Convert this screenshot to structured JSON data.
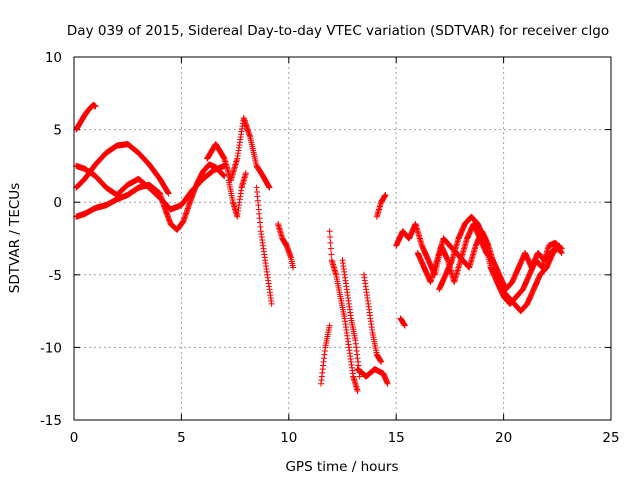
{
  "chart_data": {
    "type": "scatter",
    "title": "Day 039 of 2015, Sidereal Day-to-day VTEC variation (SDTVAR) for receiver clgo",
    "xlabel": "GPS time / hours",
    "ylabel": "SDTVAR / TECUs",
    "xlim": [
      0,
      25
    ],
    "ylim": [
      -15,
      10
    ],
    "xticks": [
      0,
      5,
      10,
      15,
      20,
      25
    ],
    "yticks": [
      -15,
      -10,
      -5,
      0,
      5,
      10
    ],
    "grid": true,
    "marker": "+",
    "series": [
      {
        "name": "clgo",
        "color": "#ff0000",
        "tracks": [
          [
            [
              0.1,
              -1.0
            ],
            [
              0.5,
              -0.8
            ],
            [
              1.0,
              -0.4
            ],
            [
              1.5,
              -0.2
            ],
            [
              2.0,
              0.2
            ],
            [
              2.5,
              0.5
            ],
            [
              3.0,
              1.0
            ],
            [
              3.5,
              1.2
            ],
            [
              4.0,
              0.6
            ],
            [
              4.2,
              -0.3
            ],
            [
              4.5,
              -1.5
            ],
            [
              4.8,
              -1.9
            ],
            [
              5.1,
              -1.3
            ],
            [
              5.4,
              0.0
            ],
            [
              5.7,
              1.2
            ],
            [
              6.0,
              2.1
            ],
            [
              6.3,
              2.6
            ],
            [
              6.6,
              2.4
            ],
            [
              7.0,
              1.8
            ]
          ],
          [
            [
              0.1,
              2.5
            ],
            [
              0.5,
              2.3
            ],
            [
              1.0,
              1.8
            ],
            [
              1.5,
              1.0
            ],
            [
              2.0,
              0.5
            ],
            [
              2.5,
              1.2
            ],
            [
              3.0,
              1.6
            ],
            [
              3.5,
              1.0
            ],
            [
              4.0,
              0.3
            ],
            [
              4.5,
              -0.5
            ],
            [
              5.0,
              -0.2
            ],
            [
              5.5,
              0.8
            ],
            [
              6.0,
              1.6
            ],
            [
              6.5,
              2.2
            ],
            [
              7.0,
              2.5
            ]
          ],
          [
            [
              0.1,
              1.0
            ],
            [
              0.5,
              1.6
            ],
            [
              1.0,
              2.6
            ],
            [
              1.5,
              3.4
            ],
            [
              2.0,
              3.9
            ],
            [
              2.5,
              4.0
            ],
            [
              3.0,
              3.4
            ],
            [
              3.5,
              2.6
            ],
            [
              4.0,
              1.6
            ],
            [
              4.4,
              0.6
            ]
          ],
          [
            [
              0.1,
              5.0
            ],
            [
              0.3,
              5.5
            ],
            [
              0.5,
              6.0
            ],
            [
              0.7,
              6.4
            ],
            [
              0.9,
              6.7
            ],
            [
              1.0,
              6.6
            ]
          ],
          [
            [
              6.2,
              3.0
            ],
            [
              6.6,
              4.0
            ],
            [
              7.0,
              3.0
            ],
            [
              7.3,
              1.5
            ],
            [
              7.6,
              3.0
            ],
            [
              7.9,
              5.8
            ],
            [
              8.2,
              4.5
            ],
            [
              8.5,
              2.5
            ],
            [
              8.8,
              1.8
            ],
            [
              9.1,
              1.0
            ]
          ],
          [
            [
              7.2,
              1.5
            ],
            [
              7.4,
              0.0
            ],
            [
              7.6,
              -1.0
            ],
            [
              7.8,
              1.0
            ],
            [
              8.0,
              2.0
            ]
          ],
          [
            [
              8.5,
              1.0
            ],
            [
              8.7,
              -2.0
            ],
            [
              8.9,
              -4.0
            ],
            [
              9.1,
              -6.0
            ],
            [
              9.2,
              -7.0
            ]
          ],
          [
            [
              9.5,
              -1.5
            ],
            [
              9.7,
              -2.5
            ],
            [
              9.9,
              -3.0
            ],
            [
              10.1,
              -3.8
            ],
            [
              10.2,
              -4.5
            ]
          ],
          [
            [
              11.5,
              -12.5
            ],
            [
              11.7,
              -10.0
            ],
            [
              11.9,
              -8.5
            ]
          ],
          [
            [
              11.9,
              -2.0
            ],
            [
              12.0,
              -4.0
            ],
            [
              12.2,
              -5.0
            ],
            [
              12.4,
              -6.5
            ],
            [
              12.6,
              -8.0
            ],
            [
              12.8,
              -10.0
            ],
            [
              13.0,
              -12.0
            ],
            [
              13.2,
              -13.0
            ]
          ],
          [
            [
              12.5,
              -4.0
            ],
            [
              12.7,
              -6.0
            ],
            [
              12.9,
              -8.0
            ],
            [
              13.1,
              -9.5
            ],
            [
              13.3,
              -12.0
            ]
          ],
          [
            [
              13.2,
              -11.5
            ],
            [
              13.6,
              -12.0
            ],
            [
              14.0,
              -11.5
            ],
            [
              14.4,
              -11.8
            ],
            [
              14.6,
              -12.5
            ]
          ],
          [
            [
              13.5,
              -5.0
            ],
            [
              13.7,
              -7.0
            ],
            [
              13.9,
              -9.0
            ],
            [
              14.1,
              -10.5
            ],
            [
              14.3,
              -11.0
            ]
          ],
          [
            [
              14.1,
              -1.0
            ],
            [
              14.3,
              0.0
            ],
            [
              14.5,
              0.5
            ]
          ],
          [
            [
              15.2,
              -8.0
            ],
            [
              15.4,
              -8.5
            ]
          ],
          [
            [
              15.0,
              -3.0
            ],
            [
              15.3,
              -2.0
            ],
            [
              15.6,
              -2.5
            ],
            [
              15.9,
              -1.5
            ],
            [
              16.2,
              -3.0
            ],
            [
              16.5,
              -4.0
            ],
            [
              16.8,
              -5.0
            ],
            [
              17.1,
              -3.0
            ],
            [
              17.4,
              -4.0
            ],
            [
              17.7,
              -5.5
            ],
            [
              18.0,
              -4.0
            ],
            [
              18.3,
              -2.5
            ],
            [
              18.6,
              -1.5
            ],
            [
              18.9,
              -2.5
            ],
            [
              19.2,
              -3.5
            ],
            [
              19.5,
              -4.0
            ],
            [
              19.8,
              -5.0
            ],
            [
              20.1,
              -6.0
            ],
            [
              20.4,
              -5.5
            ],
            [
              20.7,
              -4.5
            ],
            [
              21.0,
              -3.5
            ],
            [
              21.3,
              -4.5
            ],
            [
              21.6,
              -3.5
            ],
            [
              21.9,
              -4.0
            ],
            [
              22.2,
              -3.5
            ],
            [
              22.5,
              -3.0
            ],
            [
              22.7,
              -3.5
            ]
          ],
          [
            [
              16.0,
              -3.5
            ],
            [
              16.3,
              -4.5
            ],
            [
              16.6,
              -5.5
            ],
            [
              16.9,
              -4.0
            ],
            [
              17.2,
              -2.5
            ],
            [
              17.5,
              -3.0
            ],
            [
              17.8,
              -3.5
            ],
            [
              18.1,
              -4.0
            ],
            [
              18.4,
              -4.5
            ],
            [
              18.7,
              -3.0
            ],
            [
              19.0,
              -2.0
            ],
            [
              19.3,
              -3.0
            ],
            [
              19.6,
              -4.5
            ],
            [
              19.9,
              -6.0
            ],
            [
              20.2,
              -6.5
            ],
            [
              20.5,
              -7.0
            ],
            [
              20.8,
              -7.5
            ],
            [
              21.1,
              -7.0
            ],
            [
              21.4,
              -6.0
            ],
            [
              21.7,
              -5.0
            ],
            [
              22.0,
              -4.5
            ],
            [
              22.3,
              -3.5
            ],
            [
              22.6,
              -3.0
            ]
          ],
          [
            [
              17.0,
              -6.0
            ],
            [
              17.3,
              -5.0
            ],
            [
              17.6,
              -4.0
            ],
            [
              17.9,
              -2.5
            ],
            [
              18.2,
              -1.5
            ],
            [
              18.5,
              -1.0
            ],
            [
              18.8,
              -1.5
            ],
            [
              19.1,
              -2.5
            ],
            [
              19.4,
              -4.5
            ],
            [
              19.7,
              -5.5
            ],
            [
              20.0,
              -6.5
            ],
            [
              20.3,
              -7.0
            ],
            [
              20.6,
              -6.5
            ],
            [
              20.9,
              -6.0
            ],
            [
              21.2,
              -5.0
            ],
            [
              21.5,
              -4.0
            ],
            [
              21.8,
              -4.5
            ],
            [
              22.1,
              -3.0
            ],
            [
              22.4,
              -2.8
            ],
            [
              22.7,
              -3.2
            ]
          ]
        ]
      }
    ]
  }
}
